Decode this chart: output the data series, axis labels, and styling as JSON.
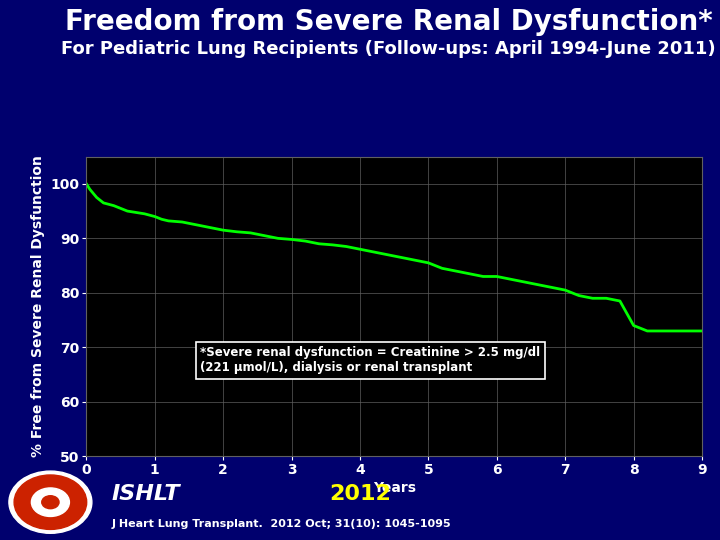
{
  "title": "Freedom from Severe Renal Dysfunction*",
  "subtitle": "For Pediatric Lung Recipients",
  "subtitle_paren": "(Follow-ups: April 1994-June 2011)",
  "ylabel": "% Free from Severe Renal Dysfunction",
  "xlabel": "Years",
  "ylim": [
    50,
    105
  ],
  "xlim": [
    0,
    9
  ],
  "yticks": [
    50,
    60,
    70,
    80,
    90,
    100
  ],
  "xticks": [
    0,
    1,
    2,
    3,
    4,
    5,
    6,
    7,
    8,
    9
  ],
  "background_outer": "#00006e",
  "background_plot": "#000000",
  "line_color": "#00ff00",
  "grid_color": "#606060",
  "text_color": "#ffffff",
  "annotation_text": "*Severe renal dysfunction = Creatinine > 2.5 mg/dl\n(221 μmol/L), dialysis or renal transplant",
  "annotation_box_color": "#000000",
  "annotation_box_edge": "#ffffff",
  "ishlt_text": "ISHLT",
  "year_text": "2012",
  "journal_text": "J Heart Lung Transplant.  2012 Oct; 31(10): 1045-1095",
  "title_fontsize": 20,
  "subtitle_fontsize": 13,
  "ylabel_fontsize": 10,
  "xlabel_fontsize": 10,
  "tick_fontsize": 10,
  "curve_x": [
    0.0,
    0.05,
    0.15,
    0.25,
    0.4,
    0.5,
    0.6,
    0.7,
    0.85,
    1.0,
    1.1,
    1.2,
    1.4,
    1.6,
    1.8,
    2.0,
    2.2,
    2.4,
    2.6,
    2.8,
    3.0,
    3.2,
    3.4,
    3.6,
    3.8,
    4.0,
    4.2,
    4.4,
    4.6,
    4.8,
    5.0,
    5.1,
    5.2,
    5.4,
    5.6,
    5.8,
    6.0,
    6.2,
    6.4,
    6.6,
    6.8,
    7.0,
    7.1,
    7.2,
    7.4,
    7.6,
    7.8,
    8.0,
    8.1,
    8.2,
    8.5,
    8.8,
    9.0
  ],
  "curve_y": [
    100,
    99,
    97.5,
    96.5,
    96,
    95.5,
    95,
    94.8,
    94.5,
    94,
    93.5,
    93.2,
    93,
    92.5,
    92,
    91.5,
    91.2,
    91,
    90.5,
    90,
    89.8,
    89.5,
    89,
    88.8,
    88.5,
    88,
    87.5,
    87,
    86.5,
    86,
    85.5,
    85,
    84.5,
    84,
    83.5,
    83,
    83,
    82.5,
    82,
    81.5,
    81,
    80.5,
    80,
    79.5,
    79,
    79,
    78.5,
    74,
    73.5,
    73,
    73,
    73,
    73
  ]
}
